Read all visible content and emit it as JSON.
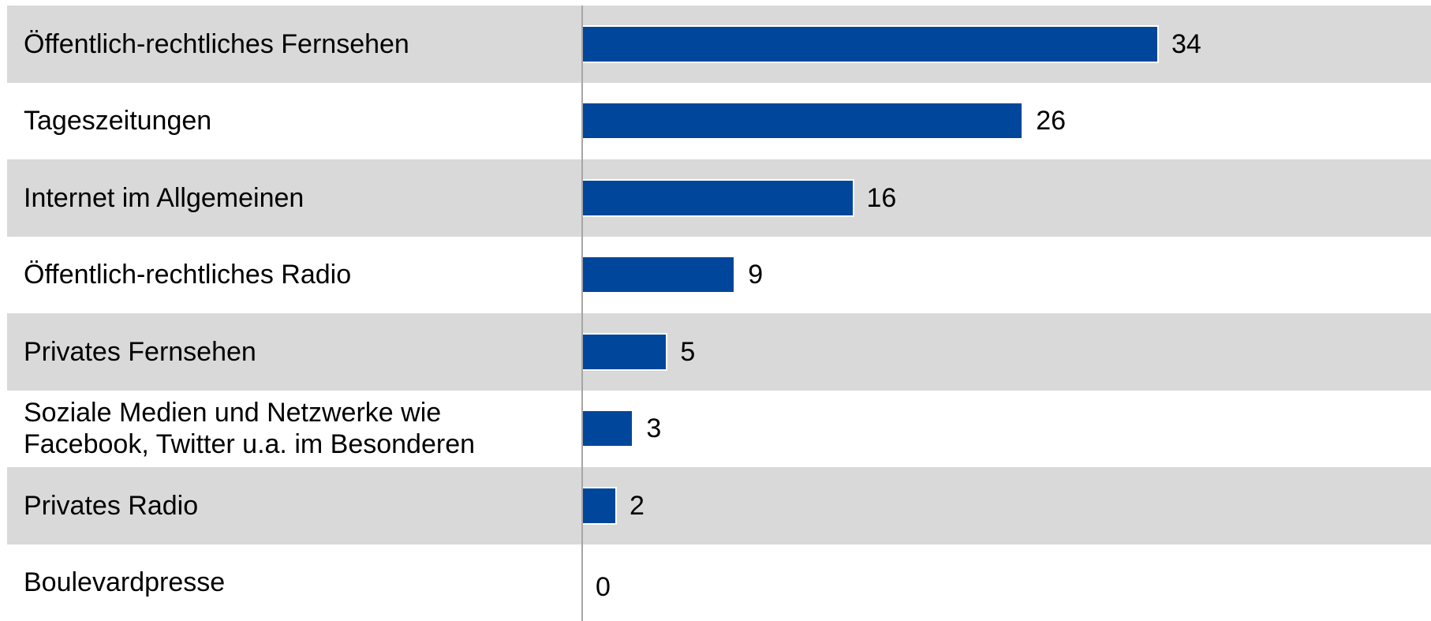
{
  "chart_data": {
    "type": "bar",
    "orientation": "horizontal",
    "categories": [
      "Öffentlich-rechtliches Fernsehen",
      "Tageszeitungen",
      "Internet im Allgemeinen",
      "Öffentlich-rechtliches Radio",
      "Privates Fernsehen",
      "Soziale Medien und Netzwerke wie Facebook, Twitter u.a. im Besonderen",
      "Privates Radio",
      "Boulevardpresse"
    ],
    "values": [
      34,
      26,
      16,
      9,
      5,
      3,
      2,
      0
    ],
    "color": "#00469b"
  }
}
